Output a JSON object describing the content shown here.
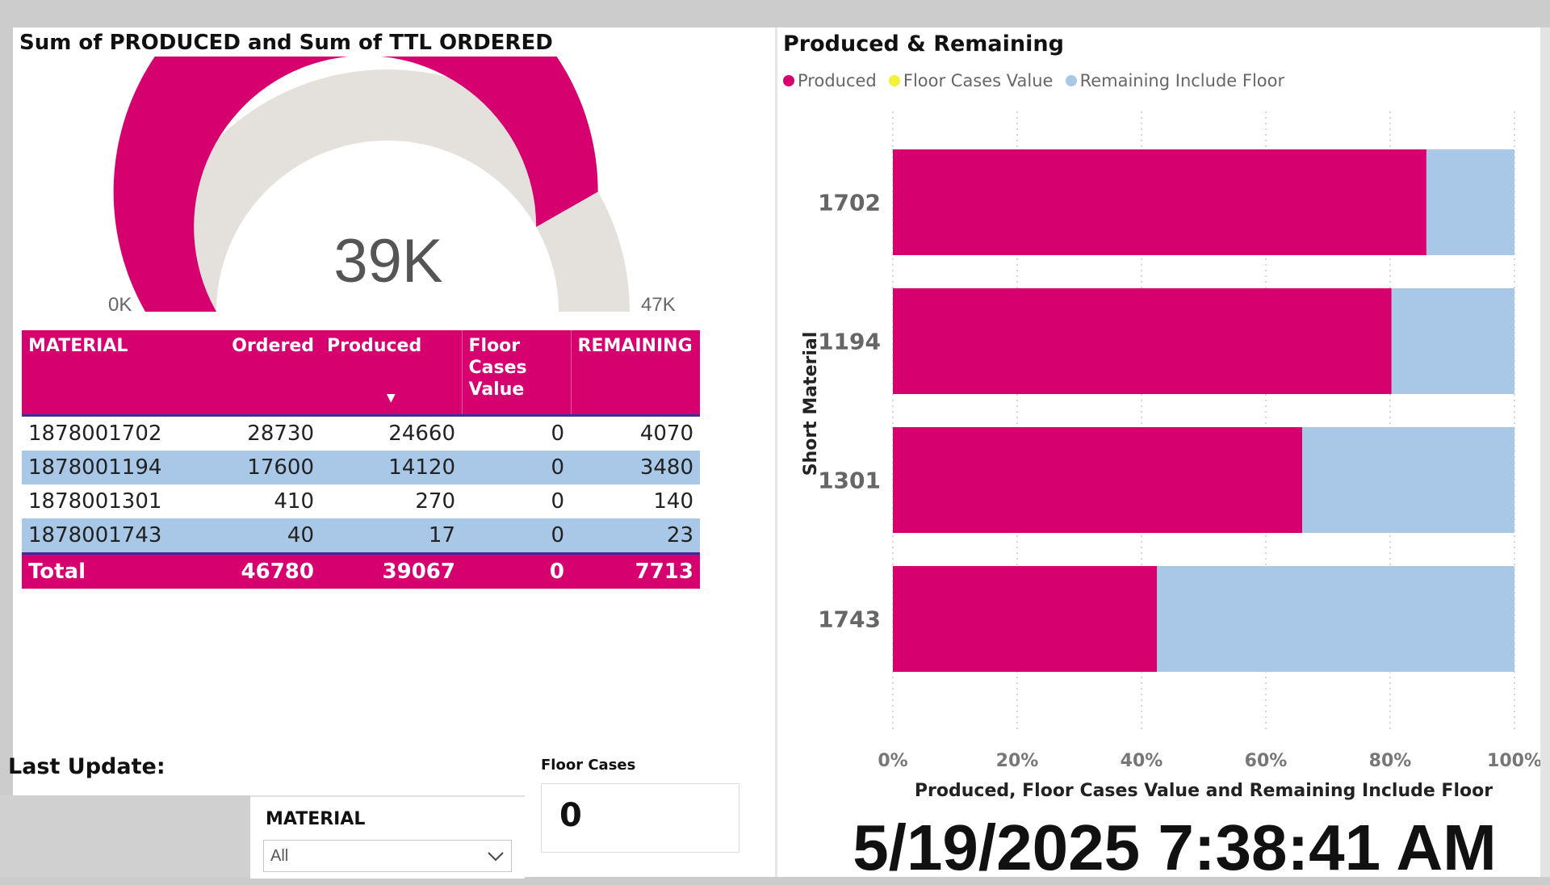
{
  "gauge": {
    "title": "Sum of PRODUCED and Sum of TTL ORDERED",
    "value_label": "39K",
    "min_label": "0K",
    "max_label": "47K",
    "value": 39067,
    "max": 46780,
    "colors": {
      "fill": "#d6006f",
      "track": "#e4e0dc"
    }
  },
  "table": {
    "headers": [
      "MATERIAL",
      "Ordered",
      "Produced",
      "Floor Cases Value",
      "REMAINING"
    ],
    "rows": [
      [
        "1878001702",
        "28730",
        "24660",
        "0",
        "4070"
      ],
      [
        "1878001194",
        "17600",
        "14120",
        "0",
        "3480"
      ],
      [
        "1878001301",
        "410",
        "270",
        "0",
        "140"
      ],
      [
        "1878001743",
        "40",
        "17",
        "0",
        "23"
      ]
    ],
    "total": [
      "Total",
      "46780",
      "39067",
      "0",
      "7713"
    ],
    "sort_icon": "sort-down-icon"
  },
  "last_update": {
    "label": "Last Update:",
    "value": "5/19/2025 7:38:41 AM"
  },
  "slicer": {
    "label": "MATERIAL",
    "value": "All",
    "icon": "chevron-down-icon"
  },
  "floor_card": {
    "label": "Floor Cases",
    "value": "0"
  },
  "chart_data": {
    "type": "bar",
    "orientation": "horizontal",
    "stacking": "100%",
    "title": "Produced & Remaining",
    "xlabel": "Produced, Floor Cases Value and Remaining Include Floor",
    "ylabel": "Short Material",
    "categories": [
      "1702",
      "1194",
      "1301",
      "1743"
    ],
    "series": [
      {
        "name": "Produced",
        "color": "#d6006f",
        "values": [
          24660,
          14120,
          270,
          17
        ]
      },
      {
        "name": "Floor Cases Value",
        "color": "#f2f23a",
        "values": [
          0,
          0,
          0,
          0
        ]
      },
      {
        "name": "Remaining Include Floor",
        "color": "#a9c8e8",
        "values": [
          4070,
          3480,
          140,
          23
        ]
      }
    ],
    "x_ticks": [
      "0%",
      "20%",
      "40%",
      "60%",
      "80%",
      "100%"
    ],
    "xlim": [
      0,
      1
    ],
    "grid": true,
    "legend_position": "top-left"
  }
}
